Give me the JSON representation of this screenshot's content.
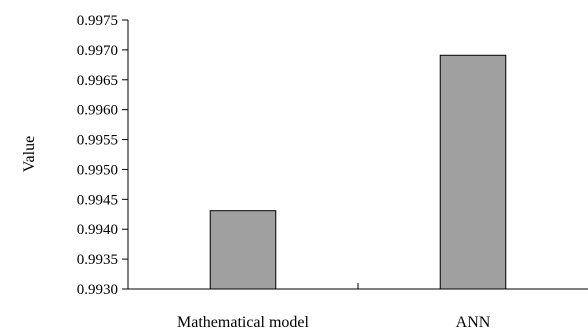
{
  "chart_data": {
    "type": "bar",
    "title": "",
    "xlabel": "",
    "ylabel": "Value",
    "categories": [
      "Mathematical model",
      "ANN"
    ],
    "series": [
      {
        "values": [
          0.99431,
          0.99691
        ]
      }
    ],
    "ylim": [
      0.993,
      0.9975
    ],
    "yticks": [
      "0.9930",
      "0.9935",
      "0.9940",
      "0.9945",
      "0.9950",
      "0.9955",
      "0.9960",
      "0.9965",
      "0.9970",
      "0.9975"
    ],
    "grid": false,
    "legend": "none",
    "colors": {
      "bar_fill": "#a0a0a0",
      "bar_stroke": "#000000",
      "axis": "#000000"
    }
  }
}
